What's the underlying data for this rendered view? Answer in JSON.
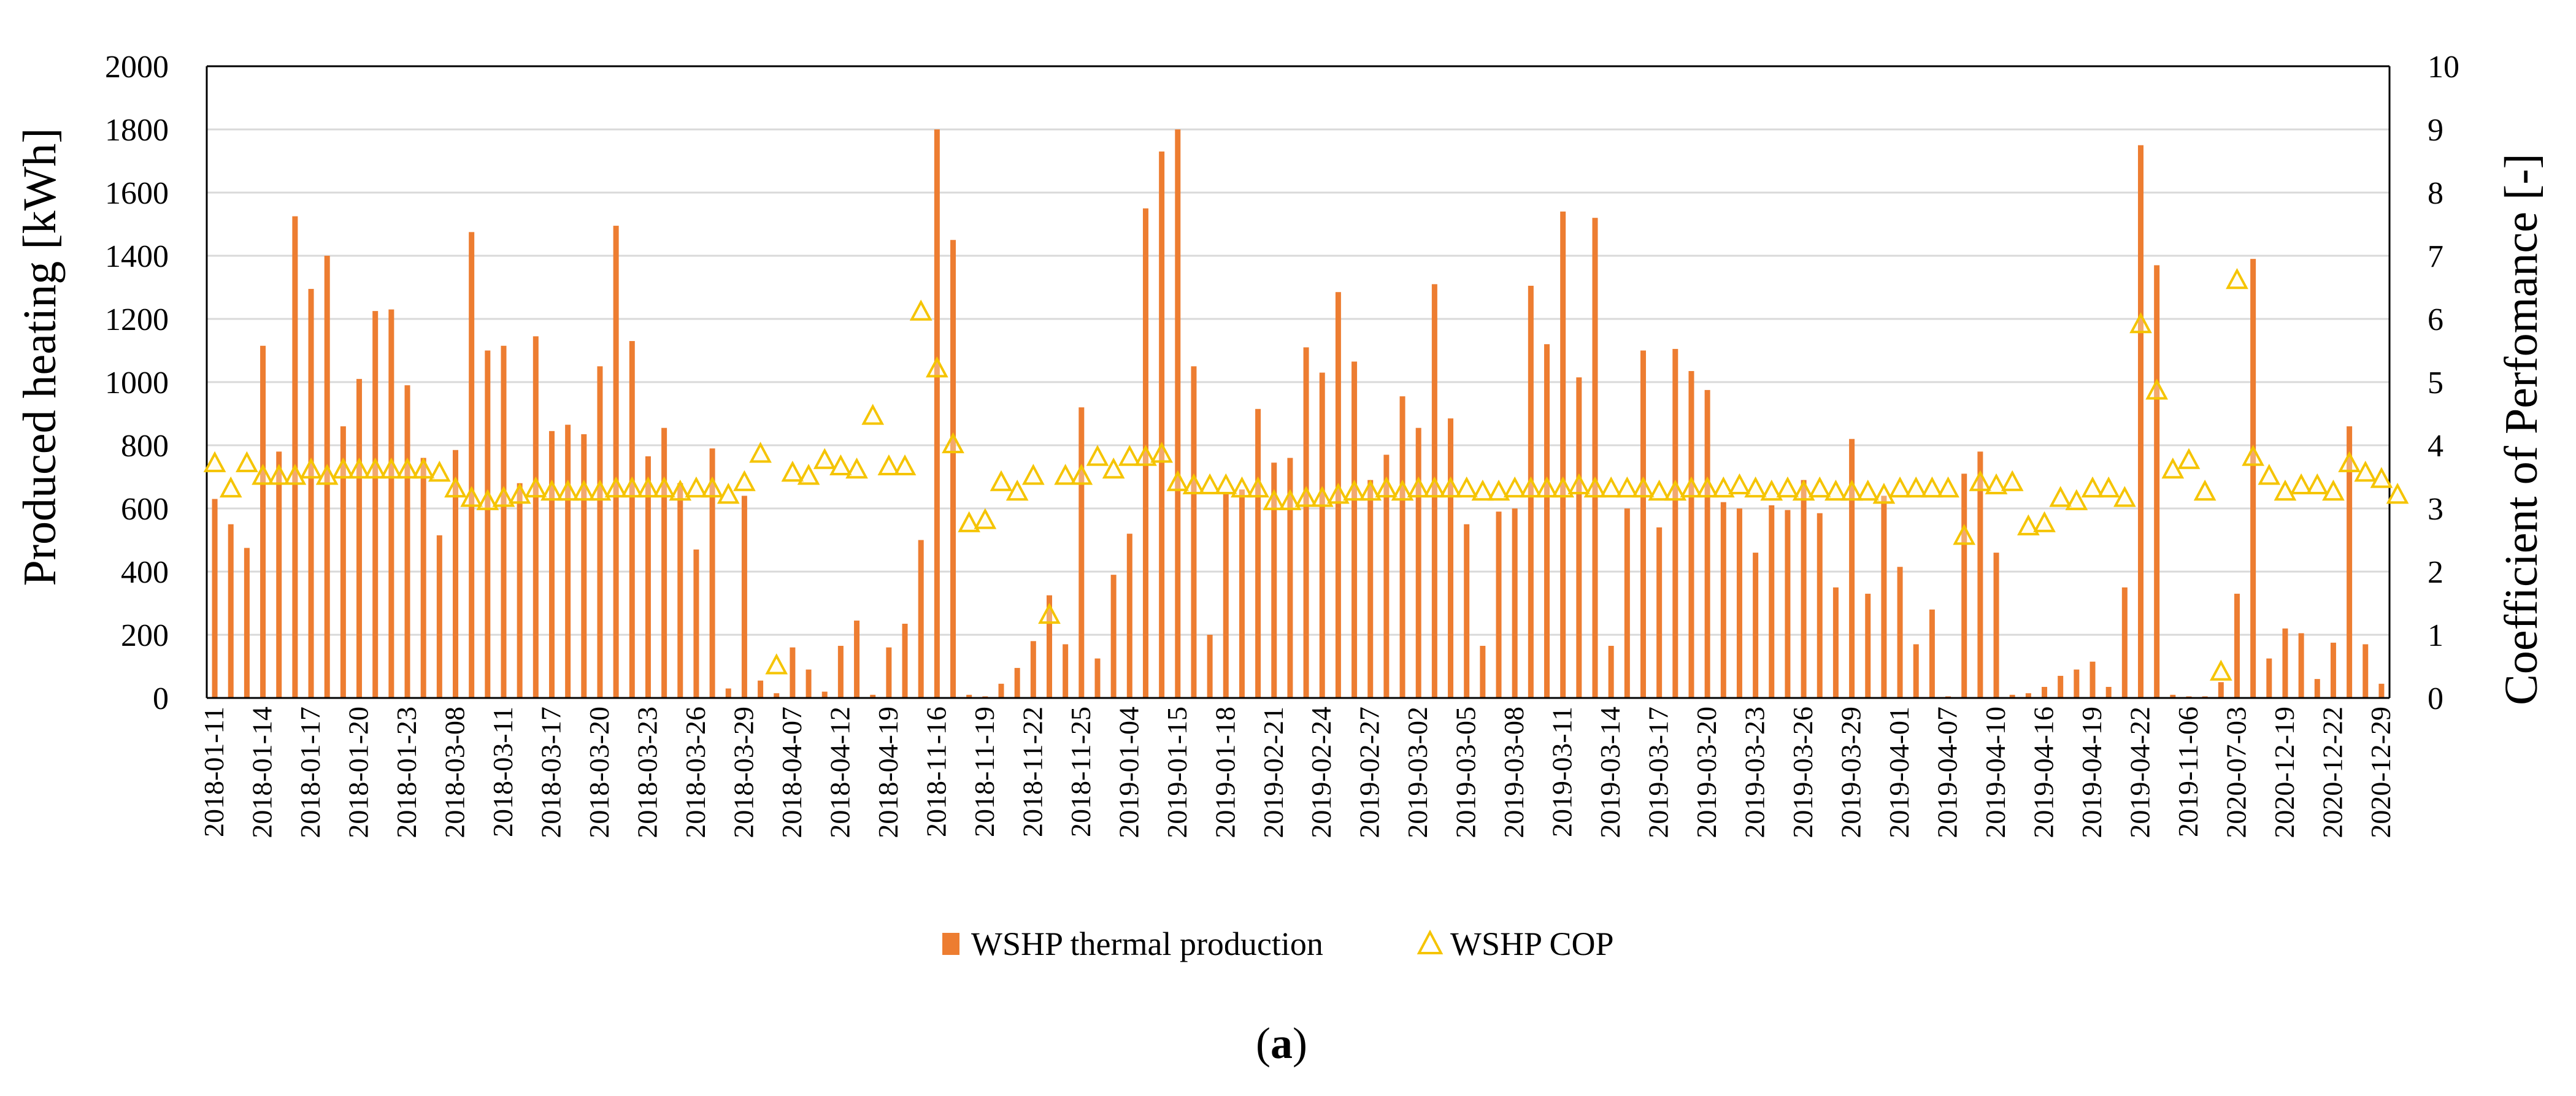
{
  "chart_data": {
    "type": "bar+scatter",
    "caption": "(a)",
    "caption_left": "(",
    "caption_letter": "a",
    "caption_right": ")",
    "ylabel_left": "Produced heating [kWh]",
    "ylabel_right": "Coefficient of Perfomance [-]",
    "ylim_left": [
      0,
      2000
    ],
    "ylim_right": [
      0,
      10
    ],
    "yticks_left": [
      0,
      200,
      400,
      600,
      800,
      1000,
      1200,
      1400,
      1600,
      1800,
      2000
    ],
    "yticks_right": [
      0,
      1,
      2,
      3,
      4,
      5,
      6,
      7,
      8,
      9,
      10
    ],
    "grid": "horizontal",
    "legend_position": "bottom-center",
    "x_tick_labels": [
      "2018-01-11",
      "2018-01-14",
      "2018-01-17",
      "2018-01-20",
      "2018-01-23",
      "2018-03-08",
      "2018-03-11",
      "2018-03-17",
      "2018-03-20",
      "2018-03-23",
      "2018-03-26",
      "2018-03-29",
      "2018-04-07",
      "2018-04-12",
      "2018-04-19",
      "2018-11-16",
      "2018-11-19",
      "2018-11-22",
      "2018-11-25",
      "2019-01-04",
      "2019-01-15",
      "2019-01-18",
      "2019-02-21",
      "2019-02-24",
      "2019-02-27",
      "2019-03-02",
      "2019-03-05",
      "2019-03-08",
      "2019-03-11",
      "2019-03-14",
      "2019-03-17",
      "2019-03-20",
      "2019-03-23",
      "2019-03-26",
      "2019-03-29",
      "2019-04-01",
      "2019-04-07",
      "2019-04-10",
      "2019-04-16",
      "2019-04-19",
      "2019-04-22",
      "2019-11-06",
      "2020-07-03",
      "2020-12-19",
      "2020-12-22",
      "2020-12-29"
    ],
    "tick_every": 3,
    "series": [
      {
        "name": "WSHP thermal production",
        "axis": "left",
        "kind": "bar",
        "color": "#ED7D31",
        "values": [
          630,
          550,
          475,
          1115,
          780,
          1525,
          1295,
          1400,
          860,
          1010,
          1225,
          1230,
          990,
          760,
          515,
          785,
          1475,
          1100,
          1115,
          680,
          1145,
          845,
          865,
          835,
          1050,
          1495,
          1130,
          765,
          855,
          680,
          470,
          790,
          30,
          640,
          55,
          15,
          160,
          90,
          20,
          165,
          245,
          10,
          160,
          235,
          500,
          1800,
          1450,
          10,
          5,
          45,
          95,
          180,
          325,
          170,
          920,
          125,
          390,
          520,
          1550,
          1730,
          1800,
          1050,
          200,
          650,
          660,
          915,
          745,
          760,
          1110,
          1030,
          1285,
          1065,
          690,
          770,
          955,
          855,
          1310,
          885,
          550,
          165,
          590,
          600,
          1305,
          1120,
          1540,
          1015,
          1520,
          165,
          600,
          1100,
          540,
          1105,
          1035,
          975,
          620,
          600,
          460,
          610,
          595,
          690,
          585,
          350,
          820,
          330,
          640,
          415,
          170,
          280,
          5,
          710,
          780,
          460,
          10,
          15,
          35,
          70,
          90,
          115,
          35,
          350,
          1750,
          1370,
          10,
          5,
          5,
          50,
          330,
          1390,
          125,
          220,
          205,
          60,
          175,
          860,
          170,
          45
        ]
      },
      {
        "name": "WSHP COP",
        "axis": "right",
        "kind": "scatter",
        "color": "#F5C400",
        "marker": "triangle",
        "values": [
          3.7,
          3.3,
          3.7,
          3.5,
          3.5,
          3.5,
          3.6,
          3.5,
          3.6,
          3.6,
          3.6,
          3.6,
          3.6,
          3.6,
          3.55,
          3.3,
          3.15,
          3.1,
          3.15,
          3.2,
          3.3,
          3.25,
          3.25,
          3.25,
          3.25,
          3.3,
          3.3,
          3.3,
          3.3,
          3.25,
          3.3,
          3.3,
          3.2,
          3.4,
          3.85,
          0.5,
          3.55,
          3.5,
          3.75,
          3.65,
          3.6,
          4.45,
          3.65,
          3.65,
          6.1,
          5.2,
          4.0,
          2.75,
          2.8,
          3.4,
          3.25,
          3.5,
          1.3,
          3.5,
          3.5,
          3.8,
          3.6,
          3.8,
          3.8,
          3.85,
          3.4,
          3.35,
          3.35,
          3.35,
          3.3,
          3.3,
          3.1,
          3.1,
          3.15,
          3.15,
          3.2,
          3.25,
          3.25,
          3.3,
          3.25,
          3.3,
          3.3,
          3.3,
          3.3,
          3.25,
          3.25,
          3.3,
          3.3,
          3.3,
          3.3,
          3.35,
          3.3,
          3.3,
          3.3,
          3.3,
          3.25,
          3.25,
          3.3,
          3.3,
          3.3,
          3.35,
          3.3,
          3.25,
          3.3,
          3.25,
          3.3,
          3.25,
          3.25,
          3.25,
          3.2,
          3.3,
          3.3,
          3.3,
          3.3,
          2.55,
          3.4,
          3.35,
          3.4,
          2.7,
          2.75,
          3.15,
          3.1,
          3.3,
          3.3,
          3.15,
          5.9,
          4.85,
          3.6,
          3.75,
          3.25,
          0.4,
          6.6,
          3.8,
          3.5,
          3.25,
          3.35,
          3.35,
          3.25,
          3.7,
          3.55,
          3.45,
          3.2
        ]
      }
    ]
  }
}
